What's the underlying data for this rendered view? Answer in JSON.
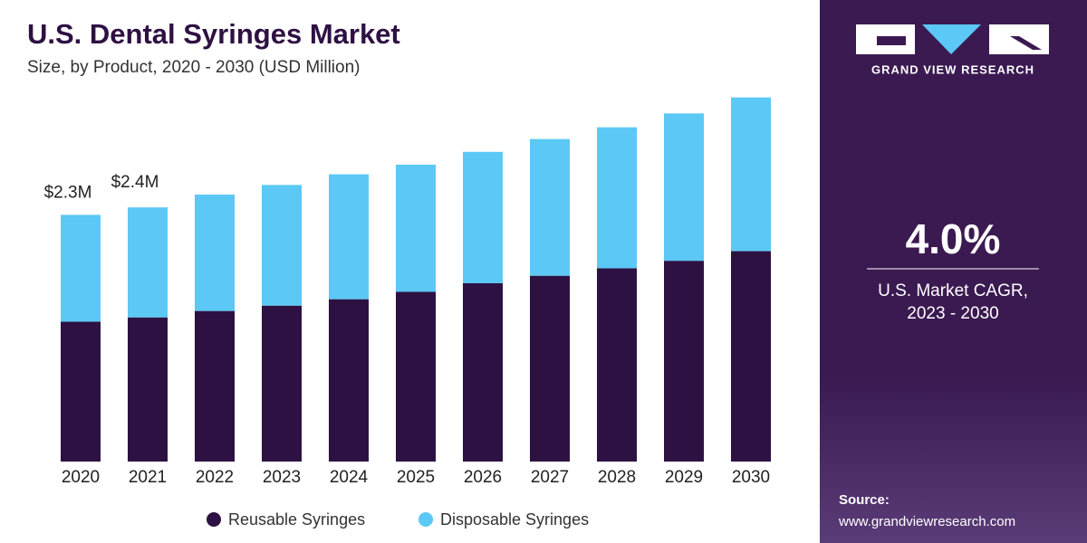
{
  "chart_data": {
    "type": "stacked_bar",
    "title": "U.S. Dental Syringes Market",
    "subtitle": "Size, by Product, 2020 - 2030 (USD Million)",
    "categories": [
      "2020",
      "2021",
      "2022",
      "2023",
      "2024",
      "2025",
      "2026",
      "2027",
      "2028",
      "2029",
      "2030"
    ],
    "series": [
      {
        "name": "Reusable Syringes",
        "color": "#2e1143",
        "values": [
          1.31,
          1.35,
          1.41,
          1.46,
          1.52,
          1.59,
          1.67,
          1.74,
          1.81,
          1.88,
          1.97
        ]
      },
      {
        "name": "Disposable Syringes",
        "color": "#5bc8f5",
        "values": [
          1.0,
          1.03,
          1.09,
          1.13,
          1.17,
          1.19,
          1.23,
          1.28,
          1.32,
          1.38,
          1.44
        ]
      }
    ],
    "total_labels": [
      {
        "value": 2.3,
        "label": "$2.3M"
      },
      {
        "value": 2.4,
        "label": "$2.4M"
      }
    ],
    "ylim": [
      0,
      3.75
    ],
    "grid": false,
    "legend": "bottom"
  },
  "sidebar": {
    "brand": "GRAND VIEW RESEARCH",
    "cagr": "4.0%",
    "cagr_label_1": "U.S. Market CAGR,",
    "cagr_label_2": "2023 - 2030",
    "source_label": "Source:",
    "source_url": "www.grandviewresearch.com"
  }
}
